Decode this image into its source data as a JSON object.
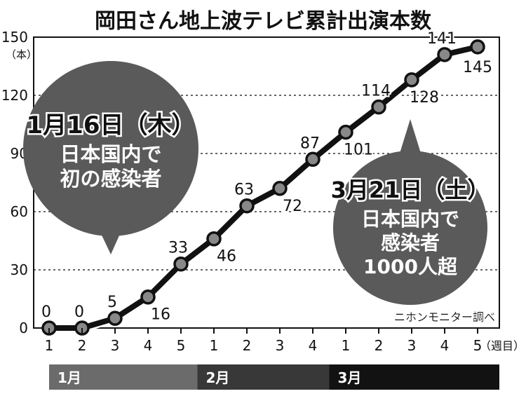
{
  "chart_data": {
    "type": "line",
    "title": "岡田さん地上波テレビ累計出演本数",
    "ylabel_unit": "（本）",
    "xlabel_unit": "（週目）",
    "ylim": [
      0,
      150
    ],
    "yticks": [
      0,
      30,
      60,
      90,
      120,
      150
    ],
    "grid": true,
    "x": [
      "1",
      "2",
      "3",
      "4",
      "5",
      "1",
      "2",
      "3",
      "4",
      "1",
      "2",
      "3",
      "4",
      "5"
    ],
    "months": [
      {
        "label": "1月",
        "start": 0,
        "end": 4,
        "color": "#6b6b6b"
      },
      {
        "label": "2月",
        "start": 5,
        "end": 8,
        "color": "#383838"
      },
      {
        "label": "3月",
        "start": 9,
        "end": 13,
        "color": "#121212"
      }
    ],
    "series": [
      {
        "values": [
          0,
          0,
          5,
          16,
          33,
          46,
          63,
          72,
          87,
          101,
          114,
          128,
          141,
          145
        ]
      }
    ],
    "annotations": [
      {
        "date": "1月16日（木）",
        "text": [
          "日本国内で",
          "初の感染者"
        ]
      },
      {
        "date": "3月21日（土）",
        "text": [
          "日本国内で",
          "感染者",
          "1000人超"
        ]
      }
    ],
    "source": "ニホンモニター調べ"
  },
  "colors": {
    "line": "#111111",
    "marker": "#888888",
    "bubble": "#5a5a5a",
    "gridline": "#333333"
  }
}
